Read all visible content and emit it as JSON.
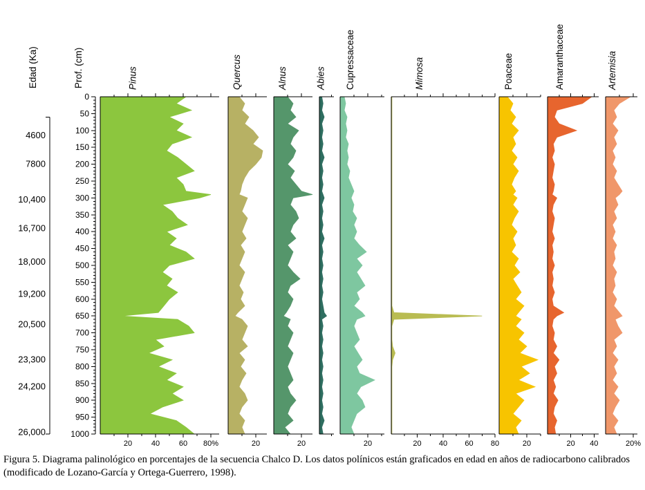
{
  "figure": {
    "caption_line1": "Figura 5. Diagrama palinológico en porcentajes de la secuencia Chalco D. Los datos polínicos están graficados en edad en años de radiocarbono calibrados",
    "caption_line2": "(modificado de Lozano-García y Ortega-Guerrero, 1998)."
  },
  "chart_data": {
    "type": "area",
    "variant": "pollen-percentage-diagram",
    "age_axis": {
      "label": "Edad (Ka)",
      "entries": [
        {
          "label": "4600",
          "depth": 115
        },
        {
          "label": "7800",
          "depth": 200
        },
        {
          "label": "10,400",
          "depth": 305
        },
        {
          "label": "16,700",
          "depth": 390
        },
        {
          "label": "18,000",
          "depth": 490
        },
        {
          "label": "19,200",
          "depth": 585
        },
        {
          "label": "20,500",
          "depth": 675
        },
        {
          "label": "23,300",
          "depth": 780
        },
        {
          "label": "24,200",
          "depth": 860
        },
        {
          "label": "26,000",
          "depth": 995
        }
      ],
      "bracket_top_depth": 60,
      "bracket_bottom_depth": 1000
    },
    "depth_axis": {
      "label": "Prof. (cm)",
      "min": 0,
      "max": 1000,
      "major_step": 50,
      "minor_step": 10,
      "labels": [
        "0",
        "50",
        "100",
        "150",
        "200",
        "250",
        "300",
        "350",
        "400",
        "450",
        "500",
        "550",
        "600",
        "650",
        "700",
        "750",
        "800",
        "850",
        "900",
        "950",
        "1000"
      ]
    },
    "percent_axis": {
      "minor_step": 10
    },
    "depths": [
      0,
      20,
      40,
      60,
      80,
      100,
      120,
      140,
      160,
      180,
      200,
      220,
      240,
      260,
      280,
      290,
      300,
      320,
      340,
      360,
      380,
      400,
      420,
      440,
      460,
      480,
      500,
      520,
      540,
      560,
      580,
      600,
      620,
      640,
      650,
      660,
      680,
      700,
      720,
      740,
      760,
      780,
      800,
      820,
      840,
      860,
      880,
      900,
      920,
      940,
      960,
      980,
      1000
    ],
    "series": [
      {
        "name": "Pinus",
        "italic": true,
        "color": "#8cc63e",
        "axis_max": 86,
        "ticks": [
          {
            "v": 20,
            "label": "20"
          },
          {
            "v": 40,
            "label": "40"
          },
          {
            "v": 60,
            "label": "60"
          },
          {
            "v": 80,
            "label": "80%"
          }
        ],
        "values": [
          62,
          55,
          66,
          50,
          60,
          55,
          66,
          52,
          48,
          56,
          62,
          68,
          55,
          60,
          62,
          80,
          72,
          45,
          52,
          56,
          63,
          48,
          55,
          50,
          62,
          68,
          50,
          45,
          52,
          48,
          56,
          50,
          46,
          42,
          15,
          56,
          64,
          68,
          40,
          46,
          35,
          52,
          42,
          55,
          48,
          60,
          52,
          60,
          45,
          36,
          55,
          62,
          68
        ]
      },
      {
        "name": "Quercus",
        "italic": true,
        "color": "#b7b164",
        "axis_max": 28,
        "ticks": [
          {
            "v": 20,
            "label": "20"
          }
        ],
        "values": [
          8,
          12,
          10,
          15,
          12,
          18,
          22,
          18,
          25,
          24,
          20,
          15,
          12,
          10,
          9,
          8,
          14,
          12,
          10,
          14,
          12,
          10,
          13,
          9,
          12,
          10,
          8,
          12,
          10,
          8,
          11,
          9,
          12,
          7,
          5,
          10,
          14,
          12,
          10,
          14,
          8,
          12,
          9,
          13,
          10,
          8,
          12,
          14,
          10,
          8,
          12,
          10,
          12
        ]
      },
      {
        "name": "Alnus",
        "italic": true,
        "color": "#55966b",
        "axis_max": 28,
        "ticks": [
          {
            "v": 20,
            "label": "20"
          }
        ],
        "values": [
          10,
          14,
          12,
          16,
          10,
          18,
          14,
          12,
          16,
          14,
          10,
          15,
          12,
          16,
          20,
          28,
          14,
          12,
          16,
          18,
          14,
          12,
          16,
          10,
          14,
          12,
          10,
          14,
          19,
          12,
          10,
          14,
          12,
          9,
          7,
          12,
          10,
          14,
          12,
          10,
          14,
          12,
          10,
          12,
          14,
          10,
          12,
          16,
          12,
          10,
          14,
          8,
          12
        ]
      },
      {
        "name": "Abies",
        "italic": true,
        "color": "#2f6e60",
        "axis_max": 12,
        "ticks": [],
        "values": [
          2,
          3,
          2,
          4,
          2,
          3,
          2,
          3,
          2,
          4,
          2,
          3,
          2,
          3,
          2,
          3,
          4,
          2,
          3,
          2,
          3,
          2,
          4,
          2,
          3,
          2,
          3,
          2,
          3,
          2,
          3,
          2,
          3,
          4,
          6,
          2,
          3,
          2,
          3,
          2,
          3,
          2,
          3,
          2,
          3,
          2,
          3,
          2,
          3,
          2,
          4,
          2,
          3
        ]
      },
      {
        "name": "Cupressaceae",
        "italic": false,
        "color": "#7ec7a0",
        "axis_max": 32,
        "ticks": [
          {
            "v": 20,
            "label": "20"
          }
        ],
        "values": [
          3,
          4,
          3,
          5,
          4,
          5,
          4,
          6,
          5,
          6,
          5,
          7,
          6,
          8,
          10,
          9,
          8,
          10,
          9,
          12,
          10,
          12,
          10,
          14,
          19,
          12,
          16,
          12,
          15,
          18,
          12,
          14,
          10,
          16,
          18,
          12,
          10,
          12,
          14,
          10,
          13,
          16,
          12,
          14,
          25,
          15,
          12,
          16,
          18,
          12,
          10,
          8,
          10
        ]
      },
      {
        "name": "Mimosa",
        "italic": true,
        "color": "#b9bc52",
        "axis_max": 80,
        "ticks": [
          {
            "v": 20,
            "label": "20"
          },
          {
            "v": 40,
            "label": "40"
          },
          {
            "v": 60,
            "label": "60"
          },
          {
            "v": 80,
            "label": "80"
          }
        ],
        "values": [
          0.5,
          0.5,
          0.5,
          0.5,
          0.5,
          0.5,
          0.5,
          0.5,
          0.5,
          0.5,
          0.5,
          0.5,
          0.5,
          0.5,
          0.5,
          0.5,
          0.5,
          0.5,
          0.5,
          0.5,
          0.5,
          0.5,
          0.5,
          0.5,
          0.5,
          0.5,
          0.5,
          0.5,
          0.5,
          0.5,
          0.5,
          0.5,
          0.5,
          2,
          70,
          2,
          0.5,
          0.5,
          0.5,
          1,
          3,
          1,
          0.5,
          0.5,
          0.5,
          0.5,
          0.5,
          0.5,
          0.5,
          0.5,
          0.5,
          0.5,
          0.5
        ]
      },
      {
        "name": "Poaceae",
        "italic": false,
        "color": "#f7c400",
        "axis_max": 30,
        "ticks": [
          {
            "v": 20,
            "label": "20"
          }
        ],
        "values": [
          6,
          10,
          8,
          12,
          9,
          14,
          10,
          12,
          9,
          13,
          10,
          14,
          11,
          9,
          12,
          10,
          13,
          10,
          14,
          11,
          9,
          13,
          10,
          12,
          9,
          14,
          11,
          15,
          10,
          13,
          16,
          12,
          18,
          14,
          12,
          16,
          12,
          18,
          14,
          20,
          15,
          28,
          16,
          22,
          14,
          26,
          12,
          18,
          14,
          10,
          16,
          12,
          14
        ]
      },
      {
        "name": "Amaranthaceae",
        "italic": false,
        "color": "#e7652e",
        "axis_max": 44,
        "ticks": [
          {
            "v": 20,
            "label": "20"
          },
          {
            "v": 40,
            "label": "40"
          }
        ],
        "values": [
          38,
          30,
          8,
          6,
          10,
          25,
          8,
          5,
          6,
          4,
          6,
          5,
          4,
          6,
          5,
          4,
          8,
          5,
          4,
          6,
          5,
          4,
          6,
          4,
          5,
          4,
          6,
          4,
          5,
          4,
          6,
          4,
          5,
          14,
          8,
          5,
          4,
          6,
          5,
          8,
          5,
          10,
          6,
          8,
          5,
          7,
          5,
          9,
          6,
          5,
          8,
          6,
          7
        ]
      },
      {
        "name": "Artemisia",
        "italic": true,
        "color": "#f0976a",
        "axis_max": 23,
        "ticks": [
          {
            "v": 20,
            "label": "20%"
          }
        ],
        "values": [
          18,
          10,
          6,
          8,
          5,
          9,
          6,
          8,
          5,
          7,
          5,
          8,
          6,
          9,
          12,
          10,
          7,
          9,
          6,
          8,
          5,
          7,
          5,
          8,
          6,
          7,
          5,
          8,
          6,
          7,
          5,
          8,
          6,
          10,
          12,
          7,
          9,
          12,
          6,
          8,
          5,
          9,
          6,
          8,
          5,
          9,
          6,
          10,
          7,
          5,
          9,
          6,
          8
        ]
      }
    ]
  }
}
